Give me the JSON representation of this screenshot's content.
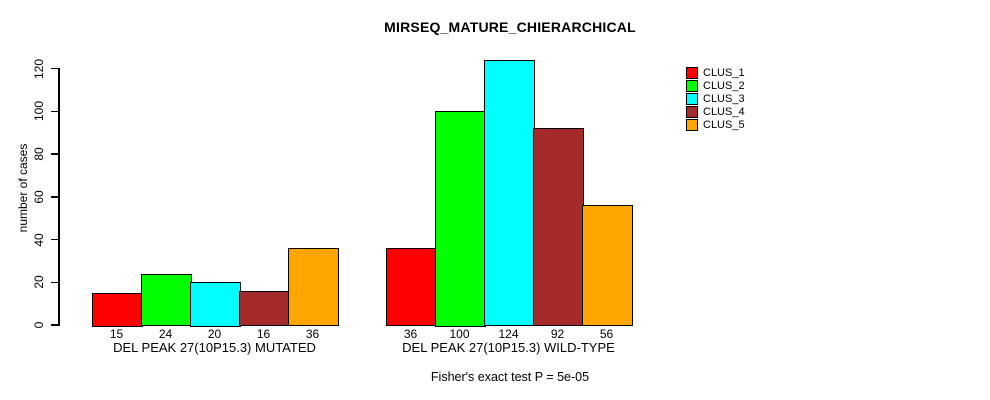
{
  "chart_data": {
    "type": "bar",
    "title": "MIRSEQ_MATURE_CHIERARCHICAL",
    "ylabel": "number of cases",
    "xlabel": "",
    "annotation": "Fisher's exact test P = 5e-05",
    "yticks": [
      0,
      20,
      40,
      60,
      80,
      100,
      120
    ],
    "ylim": [
      0,
      128
    ],
    "grid": false,
    "bar_value_labels_shown": true,
    "legend_position": "top-right",
    "legend": [
      {
        "label": "CLUS_1",
        "color": "#ff0000"
      },
      {
        "label": "CLUS_2",
        "color": "#00ff00"
      },
      {
        "label": "CLUS_3",
        "color": "#00ffff"
      },
      {
        "label": "CLUS_4",
        "color": "#a52a2a"
      },
      {
        "label": "CLUS_5",
        "color": "#ffa500"
      }
    ],
    "groups": [
      {
        "label": "DEL PEAK 27(10P15.3) MUTATED",
        "values": [
          15,
          24,
          20,
          16,
          36
        ]
      },
      {
        "label": "DEL PEAK 27(10P15.3) WILD-TYPE",
        "values": [
          36,
          100,
          124,
          92,
          56
        ]
      }
    ]
  }
}
